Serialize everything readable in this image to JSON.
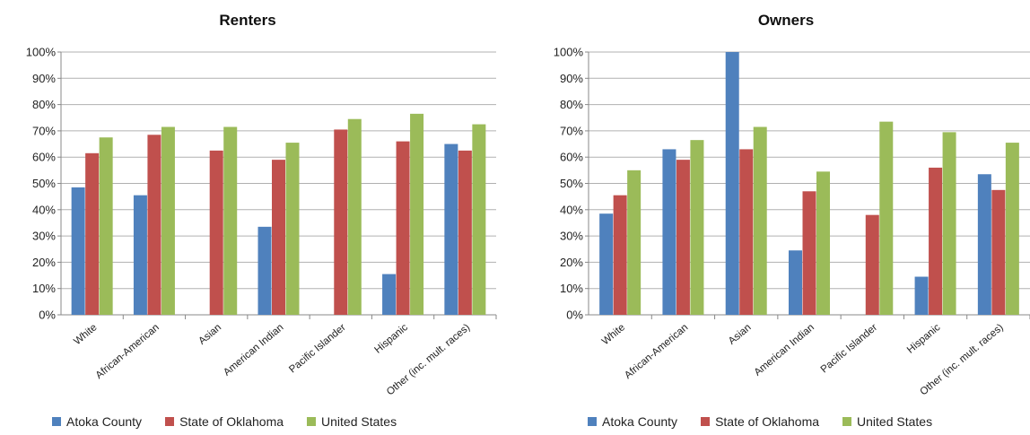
{
  "chart_data": [
    {
      "type": "bar",
      "title": "Renters",
      "categories": [
        "White",
        "African-American",
        "Asian",
        "American Indian",
        "Pacific Islander",
        "Hispanic",
        "Other (inc. mult. races)"
      ],
      "series": [
        {
          "name": "Atoka County",
          "color": "#4F81BD",
          "values": [
            48.5,
            45.5,
            0,
            33.5,
            0,
            15.5,
            65
          ]
        },
        {
          "name": "State of Oklahoma",
          "color": "#C0504D",
          "values": [
            61.5,
            68.5,
            62.5,
            59,
            70.5,
            66,
            62.5
          ]
        },
        {
          "name": "United States",
          "color": "#9BBB59",
          "values": [
            67.5,
            71.5,
            71.5,
            65.5,
            74.5,
            76.5,
            72.5
          ]
        }
      ],
      "yticks": [
        "0%",
        "10%",
        "20%",
        "30%",
        "40%",
        "50%",
        "60%",
        "70%",
        "80%",
        "90%",
        "100%"
      ],
      "ylim": [
        0,
        100
      ],
      "xlabel": "",
      "ylabel": "",
      "grid": true,
      "legend": "bottom"
    },
    {
      "type": "bar",
      "title": "Owners",
      "categories": [
        "White",
        "African-American",
        "Asian",
        "American Indian",
        "Pacific Islander",
        "Hispanic",
        "Other (inc. mult. races)"
      ],
      "series": [
        {
          "name": "Atoka County",
          "color": "#4F81BD",
          "values": [
            38.5,
            63,
            100,
            24.5,
            0,
            14.5,
            53.5
          ]
        },
        {
          "name": "State of Oklahoma",
          "color": "#C0504D",
          "values": [
            45.5,
            59,
            63,
            47,
            38,
            56,
            47.5
          ]
        },
        {
          "name": "United States",
          "color": "#9BBB59",
          "values": [
            55,
            66.5,
            71.5,
            54.5,
            73.5,
            69.5,
            65.5
          ]
        }
      ],
      "yticks": [
        "0%",
        "10%",
        "20%",
        "30%",
        "40%",
        "50%",
        "60%",
        "70%",
        "80%",
        "90%",
        "100%"
      ],
      "ylim": [
        0,
        100
      ],
      "xlabel": "",
      "ylabel": "",
      "grid": true,
      "legend": "bottom"
    }
  ]
}
